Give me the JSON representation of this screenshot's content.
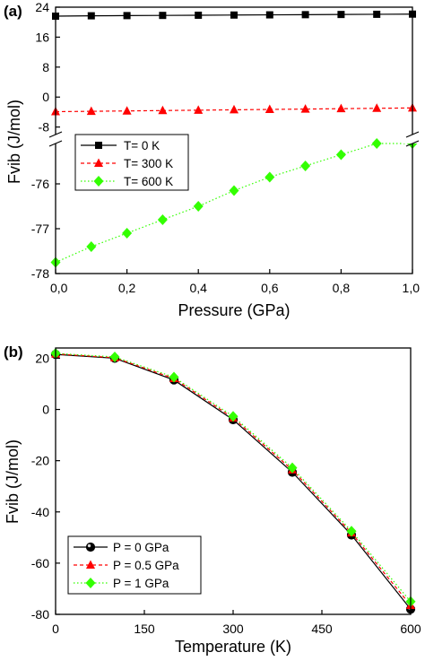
{
  "chart_data": [
    {
      "panel_label": "(a)",
      "type": "line",
      "xlabel": "Pressure (GPa)",
      "ylabel": "Fvib (J/mol)",
      "xlim": [
        0,
        1
      ],
      "x_ticks": [
        "0,0",
        "0,2",
        "0,4",
        "0,6",
        "0,8",
        "1,0"
      ],
      "y_axis_break": true,
      "ylim_upper_segment": [
        -10,
        24
      ],
      "ylim_lower_segment": [
        -78,
        -75.1
      ],
      "y_ticks_upper": [
        "24",
        "16",
        "8",
        "0",
        "-8"
      ],
      "y_ticks_lower": [
        "-76",
        "-77",
        "-78"
      ],
      "legend_position": "upper-left of lower segment",
      "x": [
        0,
        0.1,
        0.2,
        0.3,
        0.4,
        0.5,
        0.6,
        0.7,
        0.8,
        0.9,
        1.0
      ],
      "series": [
        {
          "name": "T= 0 K",
          "color": "#000000",
          "marker": "square",
          "line_style": "solid",
          "values": [
            21.6,
            21.7,
            21.75,
            21.8,
            21.85,
            21.9,
            21.95,
            22.0,
            22.05,
            22.1,
            22.15
          ]
        },
        {
          "name": "T= 300 K",
          "color": "#ff0000",
          "marker": "triangle",
          "line_style": "dashed",
          "values": [
            -3.9,
            -3.8,
            -3.7,
            -3.6,
            -3.5,
            -3.4,
            -3.3,
            -3.2,
            -3.1,
            -3.0,
            -2.9
          ]
        },
        {
          "name": "T= 600 K",
          "color": "#33ff00",
          "marker": "diamond",
          "line_style": "dotted",
          "values": [
            -77.75,
            -77.4,
            -77.1,
            -76.8,
            -76.5,
            -76.15,
            -75.85,
            -75.6,
            -75.35,
            -75.1,
            -74.85
          ]
        }
      ]
    },
    {
      "panel_label": "(b)",
      "type": "line",
      "xlabel": "Temperature (K)",
      "ylabel": "Fvib (J/mol)",
      "xlim": [
        0,
        600
      ],
      "ylim": [
        -80,
        24
      ],
      "x_ticks": [
        "0",
        "150",
        "300",
        "450",
        "600"
      ],
      "y_ticks": [
        "20",
        "0",
        "-20",
        "-40",
        "-60",
        "-80"
      ],
      "legend_position": "lower-left",
      "x": [
        0,
        100,
        200,
        300,
        400,
        500,
        600
      ],
      "series": [
        {
          "name": "P = 0 GPa",
          "color": "#000000",
          "marker": "circle",
          "line_style": "solid",
          "values": [
            21.5,
            20,
            11.5,
            -4,
            -24.5,
            -49,
            -78
          ]
        },
        {
          "name": "P = 0.5 GPa",
          "color": "#ff0000",
          "marker": "triangle",
          "line_style": "dashed",
          "values": [
            21.7,
            20.2,
            12.1,
            -3.3,
            -23.6,
            -48.2,
            -76.5
          ]
        },
        {
          "name": "P = 1 GPa",
          "color": "#33ff00",
          "marker": "diamond",
          "line_style": "dotted",
          "values": [
            21.9,
            20.5,
            12.6,
            -2.7,
            -22.8,
            -47.5,
            -75
          ]
        }
      ]
    }
  ]
}
